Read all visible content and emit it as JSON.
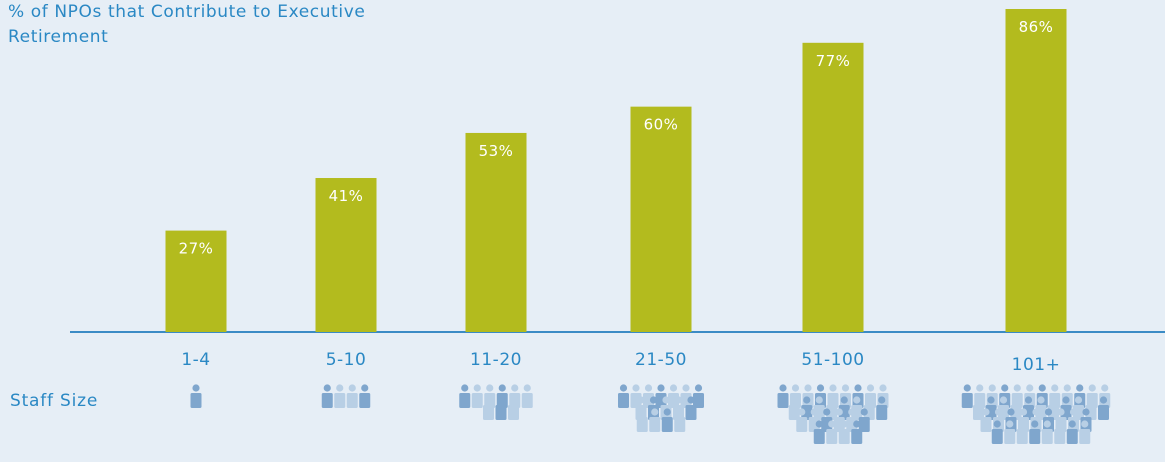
{
  "chart_data": {
    "type": "bar",
    "title": "% of NPOs that Contribute to Executive Retirement",
    "categories": [
      "1-4",
      "5-10",
      "11-20",
      "21-50",
      "51-100",
      "101+"
    ],
    "values": [
      27,
      41,
      53,
      60,
      77,
      86
    ],
    "value_labels": [
      "27%",
      "41%",
      "53%",
      "60%",
      "77%",
      "86%"
    ],
    "ylim": [
      0,
      86
    ],
    "grid": false,
    "legend": "none",
    "colors": {
      "bar": "#b3bb1e",
      "axis": "#3b8bc5",
      "text": "#2a88c4",
      "bar_label": "#ffffff",
      "person_light": "#b8cfe5",
      "person_dark": "#7fa6cd",
      "background": "#e6eef6"
    }
  },
  "staff_row": {
    "label": "Staff Size",
    "icon": "people-icon",
    "group_sizes": [
      1,
      4,
      9,
      16,
      27,
      40
    ]
  }
}
